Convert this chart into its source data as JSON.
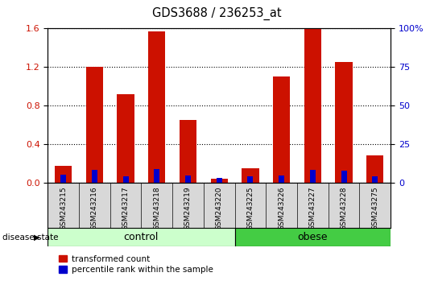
{
  "title": "GDS3688 / 236253_at",
  "samples": [
    "GSM243215",
    "GSM243216",
    "GSM243217",
    "GSM243218",
    "GSM243219",
    "GSM243220",
    "GSM243225",
    "GSM243226",
    "GSM243227",
    "GSM243228",
    "GSM243275"
  ],
  "red_values": [
    0.17,
    1.2,
    0.92,
    1.57,
    0.65,
    0.04,
    0.15,
    1.1,
    1.6,
    1.25,
    0.28
  ],
  "blue_values": [
    0.08,
    0.13,
    0.06,
    0.14,
    0.07,
    0.05,
    0.06,
    0.07,
    0.13,
    0.12,
    0.06
  ],
  "ylim_left": [
    0,
    1.6
  ],
  "ylim_right": [
    0,
    100
  ],
  "yticks_left": [
    0.0,
    0.4,
    0.8,
    1.2,
    1.6
  ],
  "yticks_right": [
    0,
    25,
    50,
    75,
    100
  ],
  "red_color": "#cc1100",
  "blue_color": "#0000cc",
  "control_samples": 6,
  "obese_samples": 5,
  "control_label": "control",
  "obese_label": "obese",
  "disease_state_label": "disease state",
  "legend_red": "transformed count",
  "legend_blue": "percentile rank within the sample",
  "control_color": "#ccffcc",
  "obese_color": "#44cc44",
  "tick_label_color_left": "#cc1100",
  "tick_label_color_right": "#0000cc",
  "bg_color": "#d8d8d8",
  "plot_bg": "#ffffff"
}
